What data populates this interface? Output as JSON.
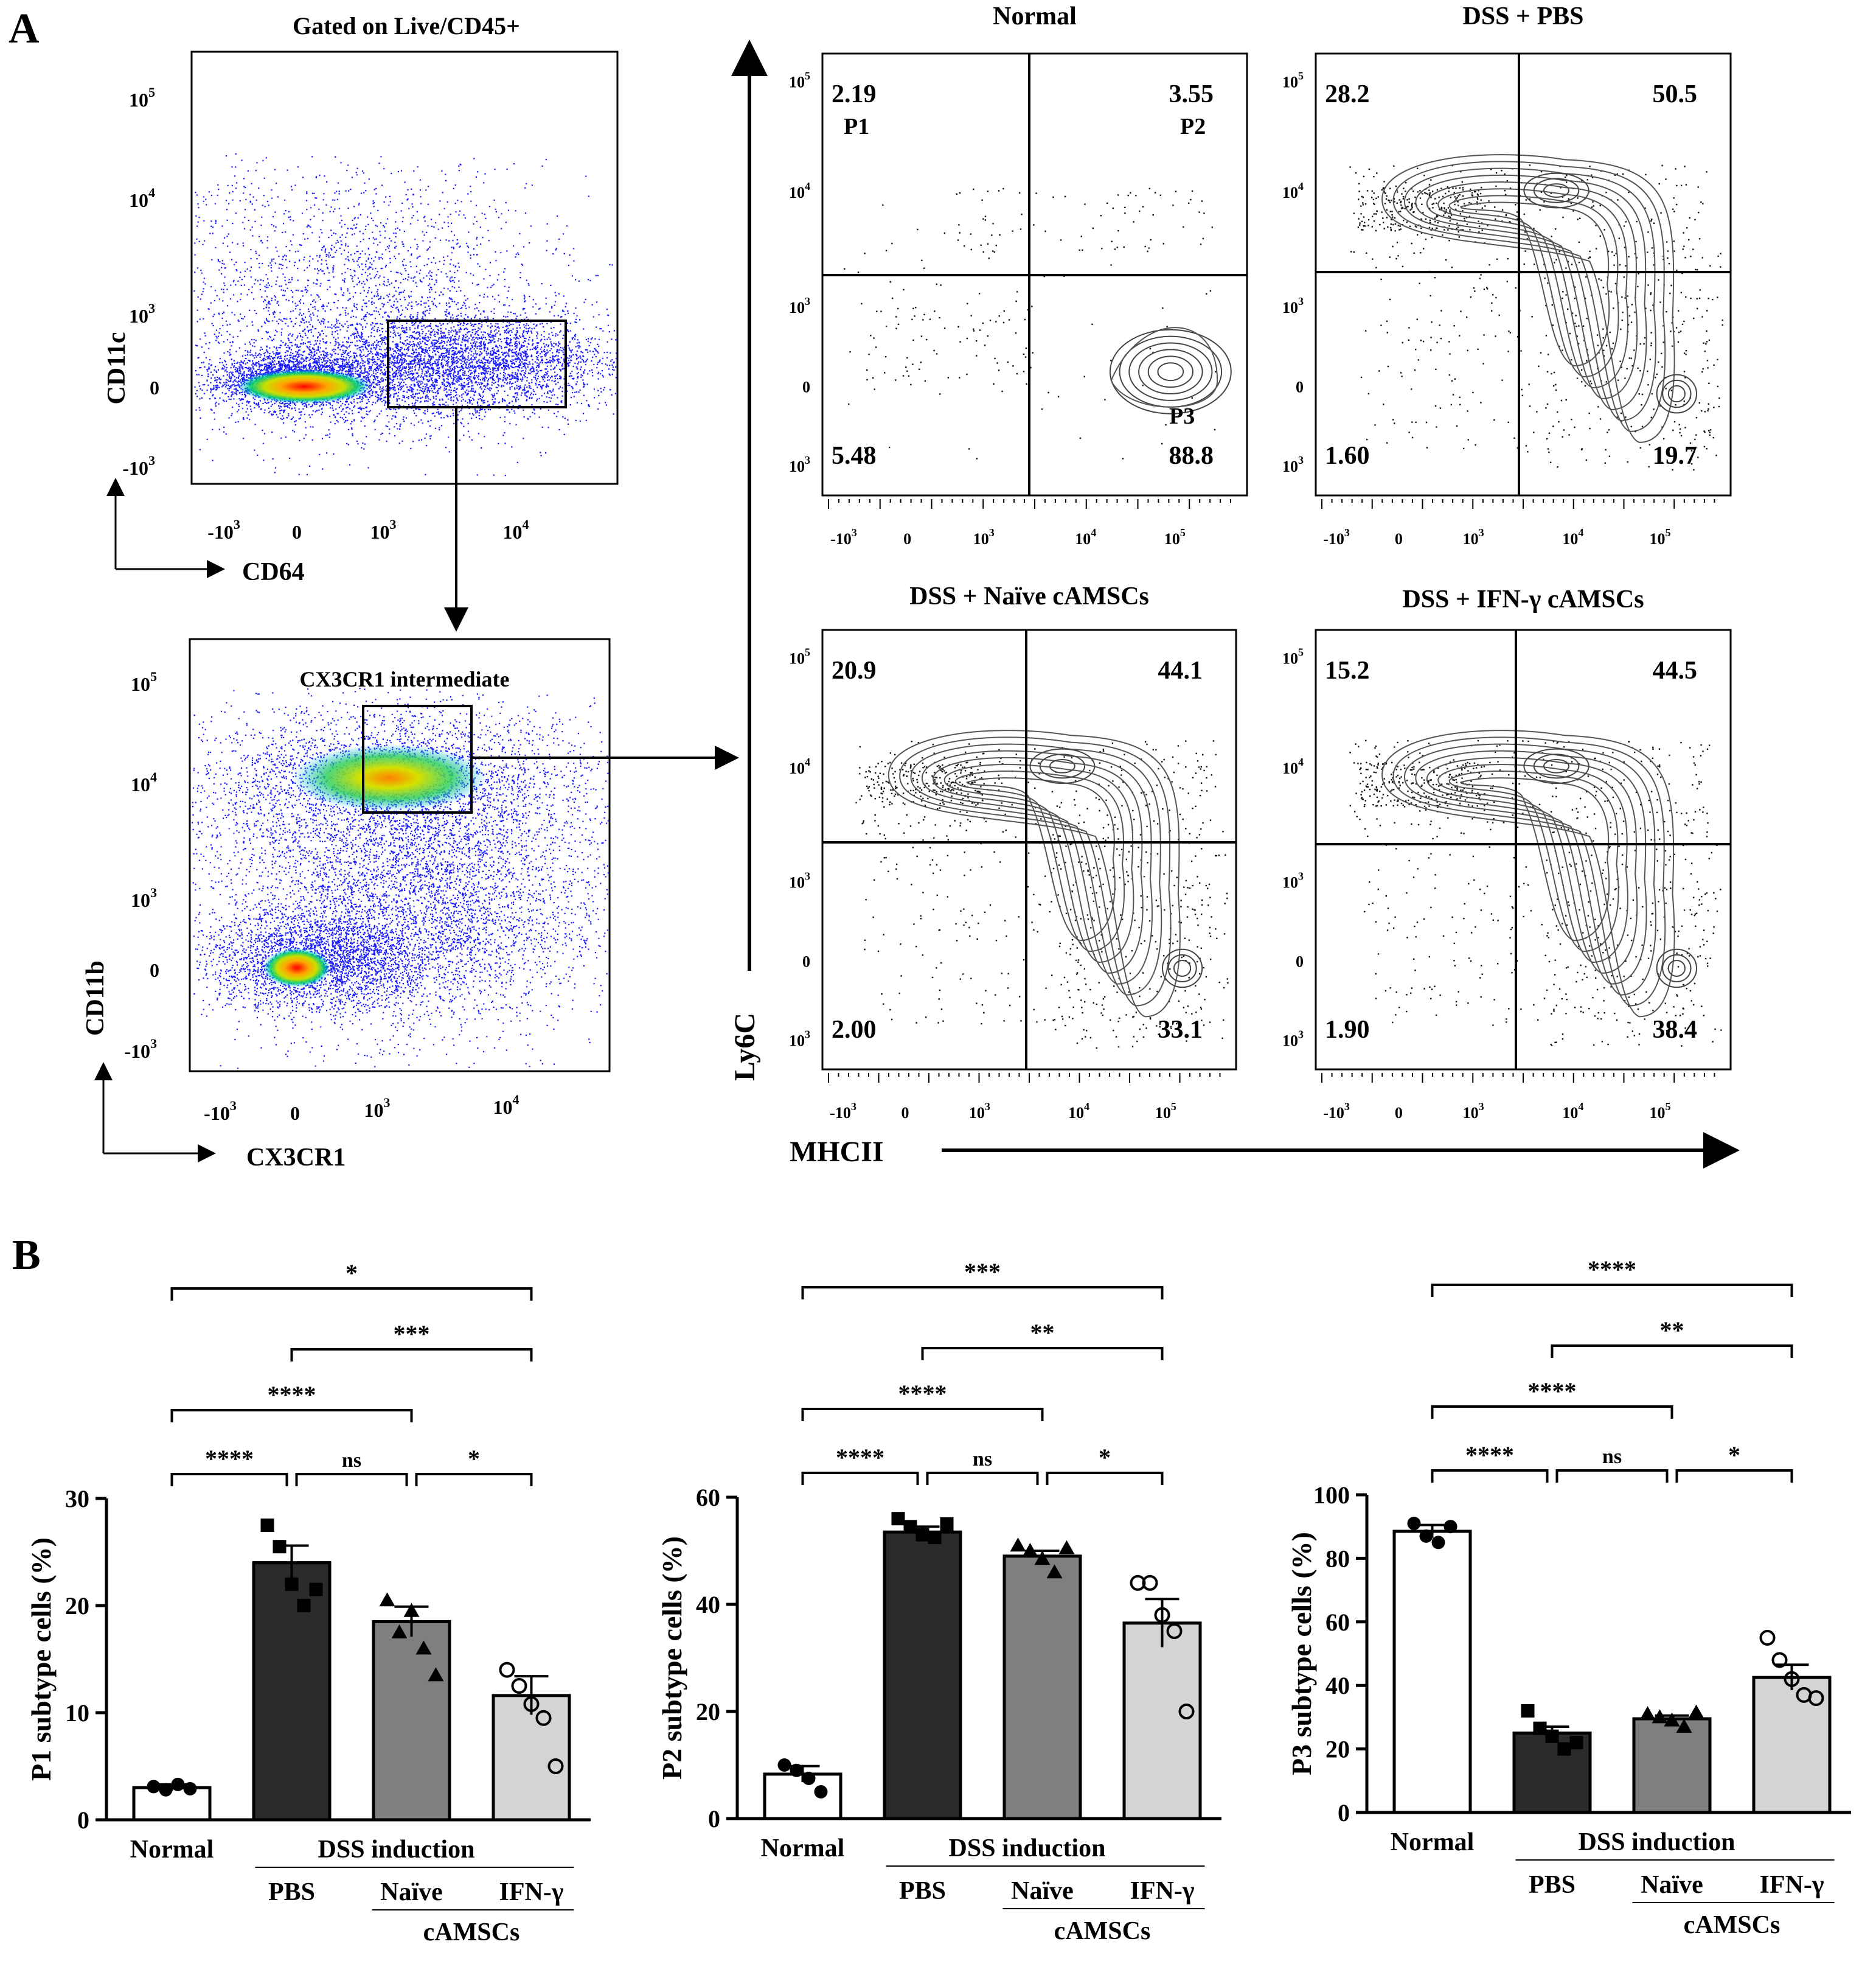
{
  "panel_labels": {
    "a": "A",
    "b": "B"
  },
  "gating": {
    "top_title": "Gated on Live/CD45+",
    "top_xaxis": "CD64",
    "top_yaxis": "CD11c",
    "bottom_gate_label": "CX3CR1 intermediate",
    "bottom_xaxis": "CX3CR1",
    "bottom_yaxis": "CD11b",
    "tick_labels": {
      "neg1e3": "-10",
      "zero": "0",
      "e3": "10",
      "e4": "10",
      "e5": "10",
      "exp3": "3",
      "exp4": "4",
      "exp5": "5"
    }
  },
  "contour": {
    "big_yaxis": "Ly6C",
    "big_xaxis": "MHCII",
    "population_labels": {
      "p1": "P1",
      "p2": "P2",
      "p3": "P3"
    },
    "plots": [
      {
        "title": "Normal",
        "ul": "2.19",
        "ur": "3.55",
        "ll": "5.48",
        "lr": "88.8"
      },
      {
        "title": "DSS + PBS",
        "ul": "28.2",
        "ur": "50.5",
        "ll": "1.60",
        "lr": "19.7"
      },
      {
        "title": "DSS + Naïve cAMSCs",
        "ul": "20.9",
        "ur": "44.1",
        "ll": "2.00",
        "lr": "33.1"
      },
      {
        "title": "DSS + IFN-γ cAMSCs",
        "ul": "15.2",
        "ur": "44.5",
        "ll": "1.90",
        "lr": "38.4"
      }
    ]
  },
  "group_labels": {
    "normal": "Normal",
    "dss": "DSS induction",
    "pbs": "PBS",
    "naive": "Naïve",
    "ifn": "IFN-γ",
    "camscs": "cAMSCs"
  },
  "chart_data": [
    {
      "type": "bar",
      "ylabel": "P1 subtype cells (%)",
      "categories": [
        "Normal",
        "PBS",
        "Naïve",
        "IFN-γ"
      ],
      "values": [
        3.0,
        24.0,
        18.5,
        11.6
      ],
      "sem": [
        0.3,
        1.6,
        1.4,
        1.8
      ],
      "points": [
        [
          3.1,
          2.8,
          3.3,
          2.9
        ],
        [
          27.5,
          25.5,
          22.0,
          20.0,
          21.5
        ],
        [
          20.5,
          17.5,
          19.5,
          16.0,
          13.5
        ],
        [
          14.0,
          12.5,
          10.8,
          9.5,
          5.0
        ]
      ],
      "ylim": [
        0,
        30
      ],
      "yticks": [
        0,
        10,
        20,
        30
      ],
      "colors": [
        "#ffffff",
        "#2b2b2b",
        "#7f7f7f",
        "#d4d4d4"
      ],
      "markers": [
        "circle-filled",
        "square-filled",
        "triangle-filled",
        "circle-open"
      ],
      "sig": [
        {
          "from": 0,
          "to": 3,
          "label": "*"
        },
        {
          "from": 1,
          "to": 3,
          "label": "***"
        },
        {
          "from": 0,
          "to": 2,
          "label": "****"
        },
        {
          "from": 0,
          "to": 1,
          "label": "****"
        },
        {
          "from": 1,
          "to": 2,
          "label": "ns"
        },
        {
          "from": 2,
          "to": 3,
          "label": "*"
        }
      ]
    },
    {
      "type": "bar",
      "ylabel": "P2 subtype cells (%)",
      "categories": [
        "Normal",
        "PBS",
        "Naïve",
        "IFN-γ"
      ],
      "values": [
        8.3,
        53.5,
        49.0,
        36.5
      ],
      "sem": [
        1.5,
        1.0,
        1.0,
        4.5
      ],
      "points": [
        [
          10.0,
          9.0,
          7.5,
          5.0
        ],
        [
          56.0,
          54.5,
          53.0,
          52.5,
          55.0
        ],
        [
          51.0,
          50.0,
          48.5,
          46.0,
          50.5
        ],
        [
          44.0,
          44.0,
          38.0,
          35.0,
          20.0
        ]
      ],
      "ylim": [
        0,
        60
      ],
      "yticks": [
        0,
        20,
        40,
        60
      ],
      "colors": [
        "#ffffff",
        "#2b2b2b",
        "#7f7f7f",
        "#d4d4d4"
      ],
      "markers": [
        "circle-filled",
        "square-filled",
        "triangle-filled",
        "circle-open"
      ],
      "sig": [
        {
          "from": 0,
          "to": 3,
          "label": "***"
        },
        {
          "from": 1,
          "to": 3,
          "label": "**"
        },
        {
          "from": 0,
          "to": 2,
          "label": "****"
        },
        {
          "from": 0,
          "to": 1,
          "label": "****"
        },
        {
          "from": 1,
          "to": 2,
          "label": "ns"
        },
        {
          "from": 2,
          "to": 3,
          "label": "*"
        }
      ]
    },
    {
      "type": "bar",
      "ylabel": "P3 subtype cells (%)",
      "categories": [
        "Normal",
        "PBS",
        "Naïve",
        "IFN-γ"
      ],
      "values": [
        88.5,
        25.0,
        29.5,
        42.5
      ],
      "sem": [
        2.0,
        2.0,
        1.0,
        4.0
      ],
      "points": [
        [
          91.0,
          87.0,
          85.0,
          90.0
        ],
        [
          32.0,
          26.5,
          24.0,
          20.0,
          22.0
        ],
        [
          31.0,
          30.0,
          29.0,
          27.0,
          31.5
        ],
        [
          55.0,
          48.0,
          42.0,
          37.0,
          36.0
        ]
      ],
      "ylim": [
        0,
        100
      ],
      "yticks": [
        0,
        20,
        40,
        60,
        80,
        100
      ],
      "colors": [
        "#ffffff",
        "#2b2b2b",
        "#7f7f7f",
        "#d4d4d4"
      ],
      "markers": [
        "circle-filled",
        "square-filled",
        "triangle-filled",
        "circle-open"
      ],
      "sig": [
        {
          "from": 0,
          "to": 3,
          "label": "****"
        },
        {
          "from": 1,
          "to": 3,
          "label": "**"
        },
        {
          "from": 0,
          "to": 2,
          "label": "****"
        },
        {
          "from": 0,
          "to": 1,
          "label": "****"
        },
        {
          "from": 1,
          "to": 2,
          "label": "ns"
        },
        {
          "from": 2,
          "to": 3,
          "label": "*"
        }
      ]
    }
  ]
}
